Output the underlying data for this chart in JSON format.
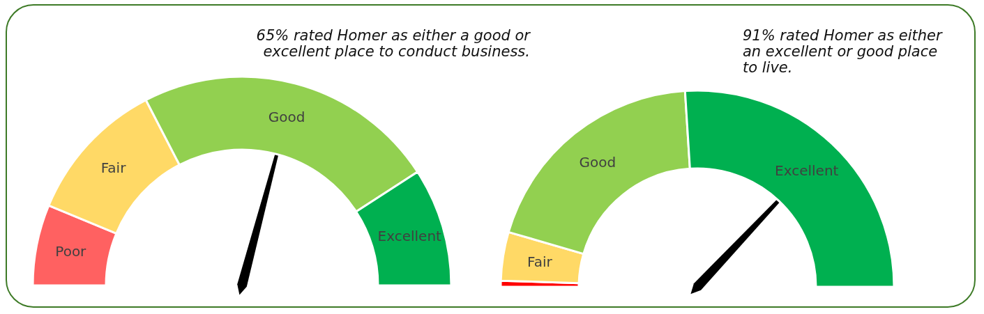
{
  "chart_data": [
    {
      "type": "donut",
      "categories": [
        "Poor",
        "Fair",
        "Good",
        "Excellent"
      ],
      "values": [
        12.5,
        22.3,
        46.9,
        18.3
      ],
      "colors": [
        "#ff6161",
        "#ffd966",
        "#92d050",
        "#00b050"
      ],
      "needle": "Good",
      "annotations": [
        "65% rated Homer as either a good or excellent place to conduct business."
      ]
    },
    {
      "type": "donut",
      "categories": [
        null,
        "Fair",
        "Good",
        "Excellent"
      ],
      "values": [
        1,
        8,
        39,
        52
      ],
      "colors": [
        "#ff0000",
        "#ffd966",
        "#92d050",
        "#00b050"
      ],
      "needle": "Excellent",
      "annotations": [
        "91% rated Homer as either an excellent or good place to live."
      ]
    }
  ]
}
